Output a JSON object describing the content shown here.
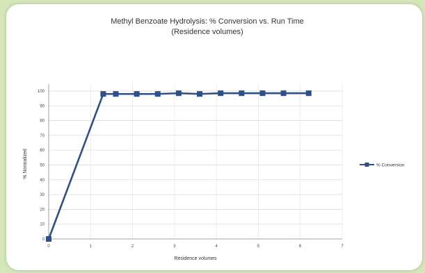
{
  "chart_data": {
    "type": "line",
    "title": "Methyl Benzoate Hydrolysis: % Conversion vs. Run Time",
    "subtitle": "(Residence volumes)",
    "xlabel": "Residence volumes",
    "ylabel": "% Normalized",
    "xlim": [
      0,
      7
    ],
    "ylim": [
      0,
      100
    ],
    "xticks": [
      "0",
      "1",
      "2",
      "3",
      "4",
      "5",
      "6",
      "7"
    ],
    "yticks": [
      "0",
      "10",
      "20",
      "30",
      "40",
      "50",
      "60",
      "70",
      "80",
      "90",
      "100"
    ],
    "grid": true,
    "legend_position": "right",
    "series": [
      {
        "name": "% Conversion",
        "color": "#2f4f8a",
        "x": [
          0,
          1.3,
          1.6,
          2.1,
          2.6,
          3.1,
          3.6,
          4.1,
          4.6,
          5.1,
          5.6,
          6.2
        ],
        "y": [
          0,
          98,
          98,
          98,
          98,
          98.5,
          98,
          98.5,
          98.5,
          98.5,
          98.5,
          98.5
        ]
      }
    ]
  }
}
